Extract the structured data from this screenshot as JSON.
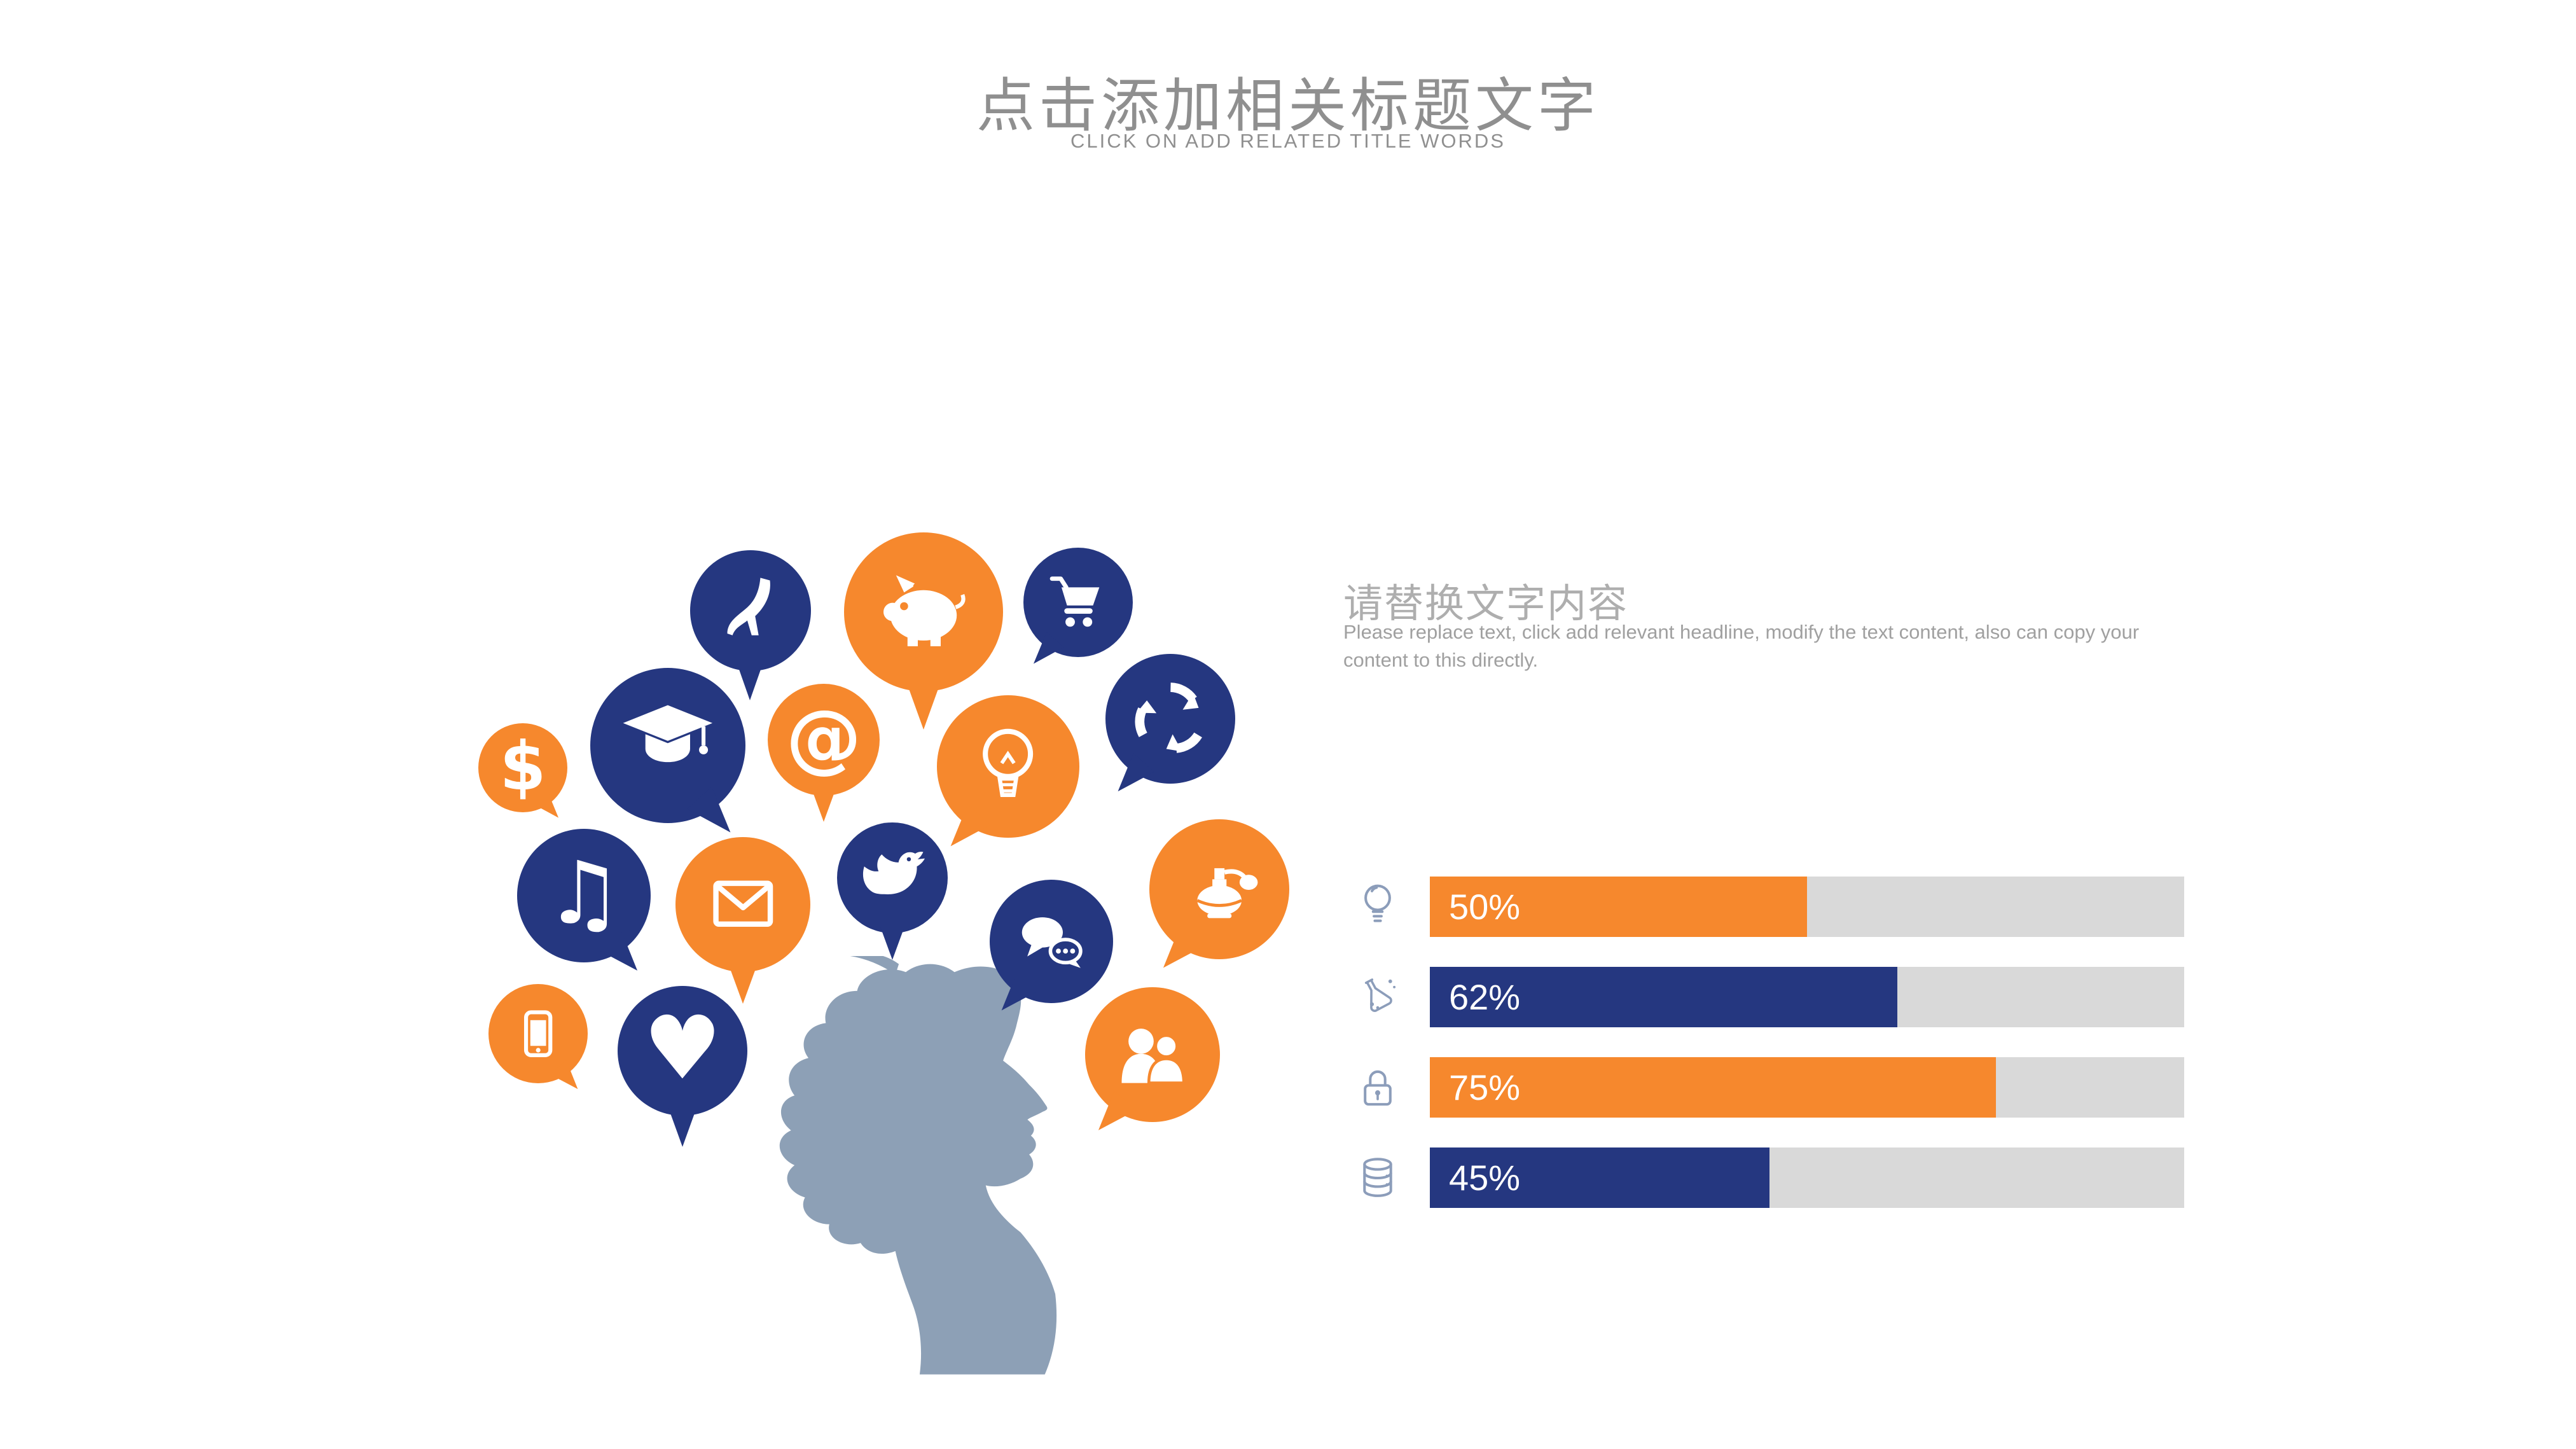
{
  "slide": {
    "title": "点击添加相关标题文字",
    "subtitle": "CLICK ON ADD RELATED TITLE WORDS"
  },
  "content": {
    "heading": "请替换文字内容",
    "body": "Please replace text, click add relevant headline, modify the text content, also can copy your content to this directly."
  },
  "colors": {
    "orange": "#F6882D",
    "navy": "#253780",
    "track": "#D9D9D9",
    "silhouette": "#8DA0B6",
    "chart_icon": "#8C9DBA",
    "title": "#8F8F8F",
    "subtitle": "#8F8F8F",
    "heading": "#AEAEAE",
    "body_text": "#A0A0A0",
    "label_text": "#FFFFFF"
  },
  "bubbles": [
    {
      "icon": "high-heel-icon",
      "color": "navy"
    },
    {
      "icon": "piggy-bank-icon",
      "color": "orange"
    },
    {
      "icon": "shopping-cart-icon",
      "color": "navy"
    },
    {
      "icon": "recycle-icon",
      "color": "navy"
    },
    {
      "icon": "dollar-icon",
      "color": "orange"
    },
    {
      "icon": "graduation-cap-icon",
      "color": "navy"
    },
    {
      "icon": "at-sign-icon",
      "color": "orange"
    },
    {
      "icon": "lightbulb-icon",
      "color": "orange"
    },
    {
      "icon": "music-note-icon",
      "color": "navy"
    },
    {
      "icon": "envelope-icon",
      "color": "orange"
    },
    {
      "icon": "bird-icon",
      "color": "navy"
    },
    {
      "icon": "chat-bubbles-icon",
      "color": "navy"
    },
    {
      "icon": "perfume-icon",
      "color": "orange"
    },
    {
      "icon": "smartphone-icon",
      "color": "orange"
    },
    {
      "icon": "heart-icon",
      "color": "navy"
    },
    {
      "icon": "people-icon",
      "color": "orange"
    }
  ],
  "chart_data": {
    "type": "bar",
    "orientation": "horizontal",
    "categories": [
      "lightbulb",
      "flask",
      "lock",
      "database"
    ],
    "category_icons": [
      "lightbulb-outline-icon",
      "flask-outline-icon",
      "lock-outline-icon",
      "database-outline-icon"
    ],
    "values": [
      50,
      62,
      75,
      45
    ],
    "labels": [
      "50%",
      "62%",
      "75%",
      "45%"
    ],
    "bar_colors": [
      "#F6882D",
      "#253780",
      "#F6882D",
      "#253780"
    ],
    "track_color": "#D9D9D9",
    "xlim": [
      0,
      100
    ],
    "grid": false,
    "legend": "none"
  }
}
